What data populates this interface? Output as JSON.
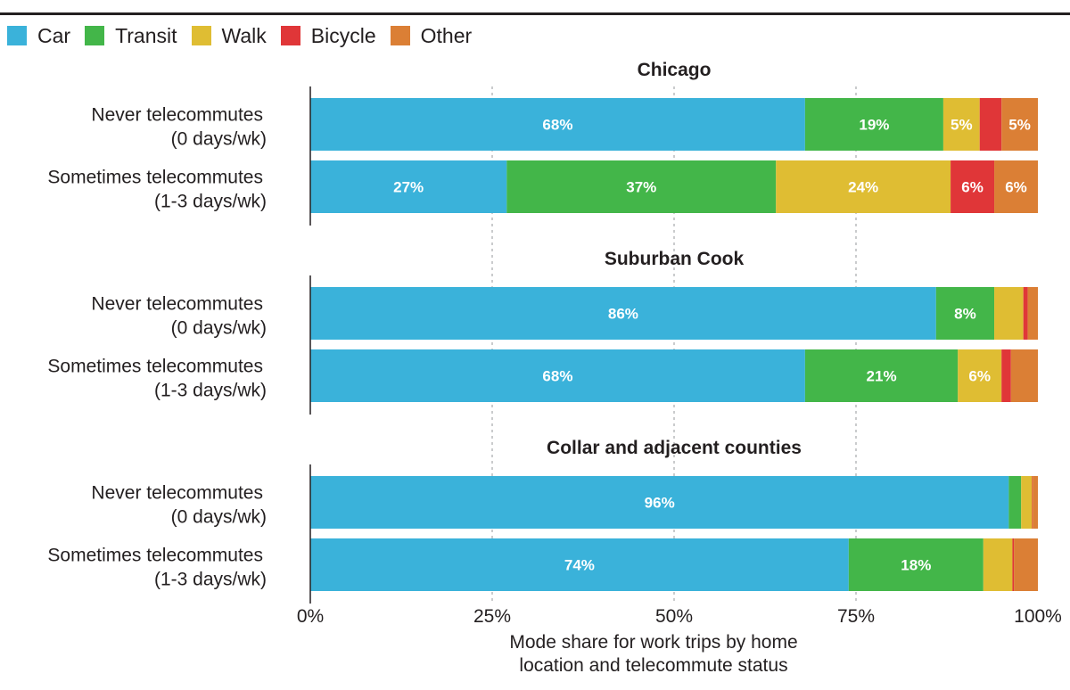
{
  "legend": [
    {
      "label": "Car",
      "color": "#3ab2da"
    },
    {
      "label": "Transit",
      "color": "#43b649"
    },
    {
      "label": "Walk",
      "color": "#dfbd33"
    },
    {
      "label": "Bicycle",
      "color": "#e03638"
    },
    {
      "label": "Other",
      "color": "#db7f35"
    }
  ],
  "chart_data": {
    "type": "bar",
    "orientation": "horizontal",
    "stacked": true,
    "xlabel": [
      "Mode share for work trips by home",
      "location and telecommute status"
    ],
    "xlim": [
      0,
      100
    ],
    "x_ticks": [
      "0%",
      "25%",
      "50%",
      "75%",
      "100%"
    ],
    "grid": "vertical dashed",
    "legend_position": "top-left",
    "series_names": [
      "Car",
      "Transit",
      "Walk",
      "Bicycle",
      "Other"
    ],
    "panels": [
      {
        "title": "Chicago",
        "rows": [
          {
            "label": [
              "Never telecommutes",
              "(0 days/wk)"
            ],
            "values": [
              68,
              19,
              5,
              3,
              5
            ],
            "labels": [
              "68%",
              "19%",
              "5%",
              "",
              "5%"
            ]
          },
          {
            "label": [
              "Sometimes telecommutes",
              "(1-3 days/wk)"
            ],
            "values": [
              27,
              37,
              24,
              6,
              6
            ],
            "labels": [
              "27%",
              "37%",
              "24%",
              "6%",
              "6%"
            ]
          }
        ]
      },
      {
        "title": "Suburban Cook",
        "rows": [
          {
            "label": [
              "Never telecommutes",
              "(0 days/wk)"
            ],
            "values": [
              86,
              8,
              4,
              0.6,
              1.4
            ],
            "labels": [
              "86%",
              "8%",
              "",
              "",
              ""
            ]
          },
          {
            "label": [
              "Sometimes telecommutes",
              "(1-3 days/wk)"
            ],
            "values": [
              68,
              21,
              6,
              1.3,
              3.7
            ],
            "labels": [
              "68%",
              "21%",
              "6%",
              "",
              ""
            ]
          }
        ]
      },
      {
        "title": "Collar and adjacent counties",
        "rows": [
          {
            "label": [
              "Never telecommutes",
              "(0 days/wk)"
            ],
            "values": [
              96,
              1.7,
              1.5,
              0.1,
              0.7
            ],
            "labels": [
              "96%",
              "",
              "",
              "",
              ""
            ]
          },
          {
            "label": [
              "Sometimes telecommutes",
              "(1-3 days/wk)"
            ],
            "values": [
              74,
              18.5,
              4,
              0.2,
              3.3
            ],
            "labels": [
              "74%",
              "18%",
              "",
              "",
              ""
            ]
          }
        ]
      }
    ]
  }
}
